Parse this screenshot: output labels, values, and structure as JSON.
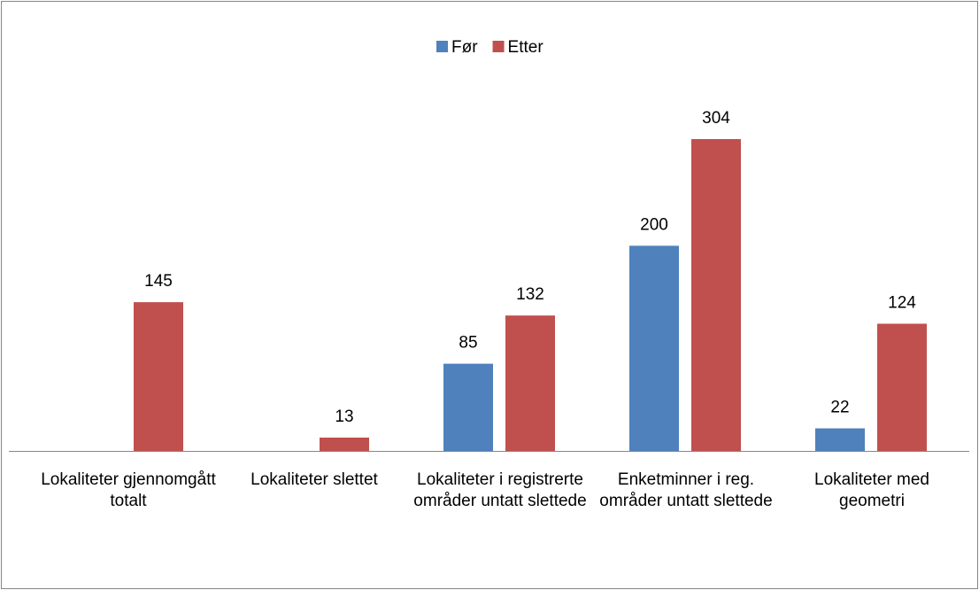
{
  "chart_data": {
    "type": "bar",
    "categories": [
      "Lokaliteter gjennomgått totalt",
      "Lokaliteter slettet",
      "Lokaliteter i registrerte områder untatt slettede",
      "Enketminner i reg. områder untatt slettede",
      "Lokaliteter med geometri"
    ],
    "series": [
      {
        "name": "Før",
        "color": "#4f81bd",
        "values": [
          null,
          null,
          85,
          200,
          22
        ]
      },
      {
        "name": "Etter",
        "color": "#c0504d",
        "values": [
          145,
          13,
          132,
          304,
          124
        ]
      }
    ],
    "legend": "top"
  }
}
